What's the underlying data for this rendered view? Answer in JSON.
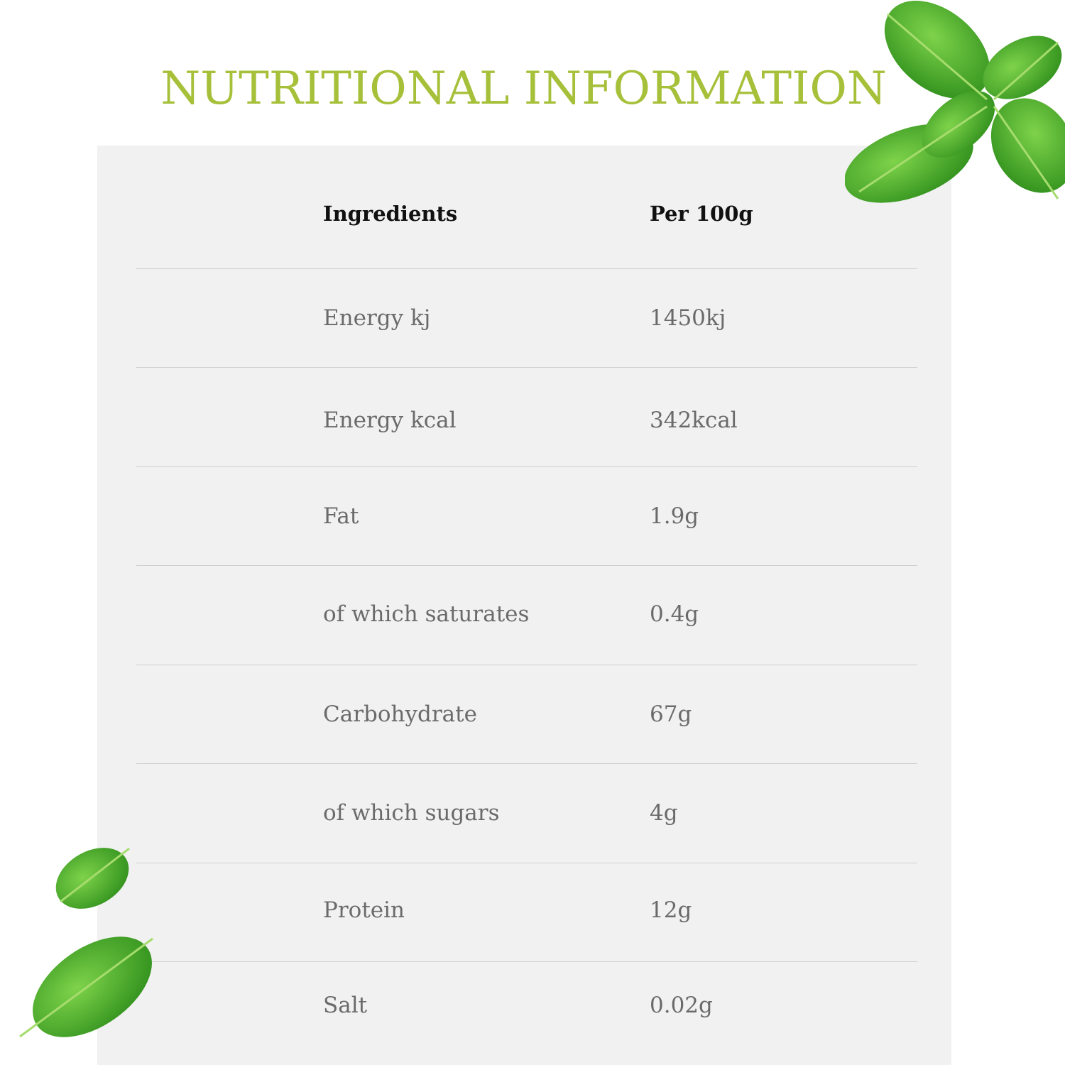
{
  "title": "NUTRITIONAL INFORMATION",
  "colors": {
    "title": "#a6c03a",
    "panel": "#f1f1f1",
    "leaf": "#4caf2a"
  },
  "table": {
    "headers": [
      "Ingredients",
      "Per 100g"
    ],
    "rows": [
      [
        "Energy kj",
        "1450kj"
      ],
      [
        "Energy kcal",
        "342kcal"
      ],
      [
        "Fat",
        "1.9g"
      ],
      [
        "of which saturates",
        "0.4g"
      ],
      [
        "Carbohydrate",
        "67g"
      ],
      [
        "of which sugars",
        "4g"
      ],
      [
        "Protein",
        "12g"
      ],
      [
        "Salt",
        "0.02g"
      ]
    ]
  }
}
